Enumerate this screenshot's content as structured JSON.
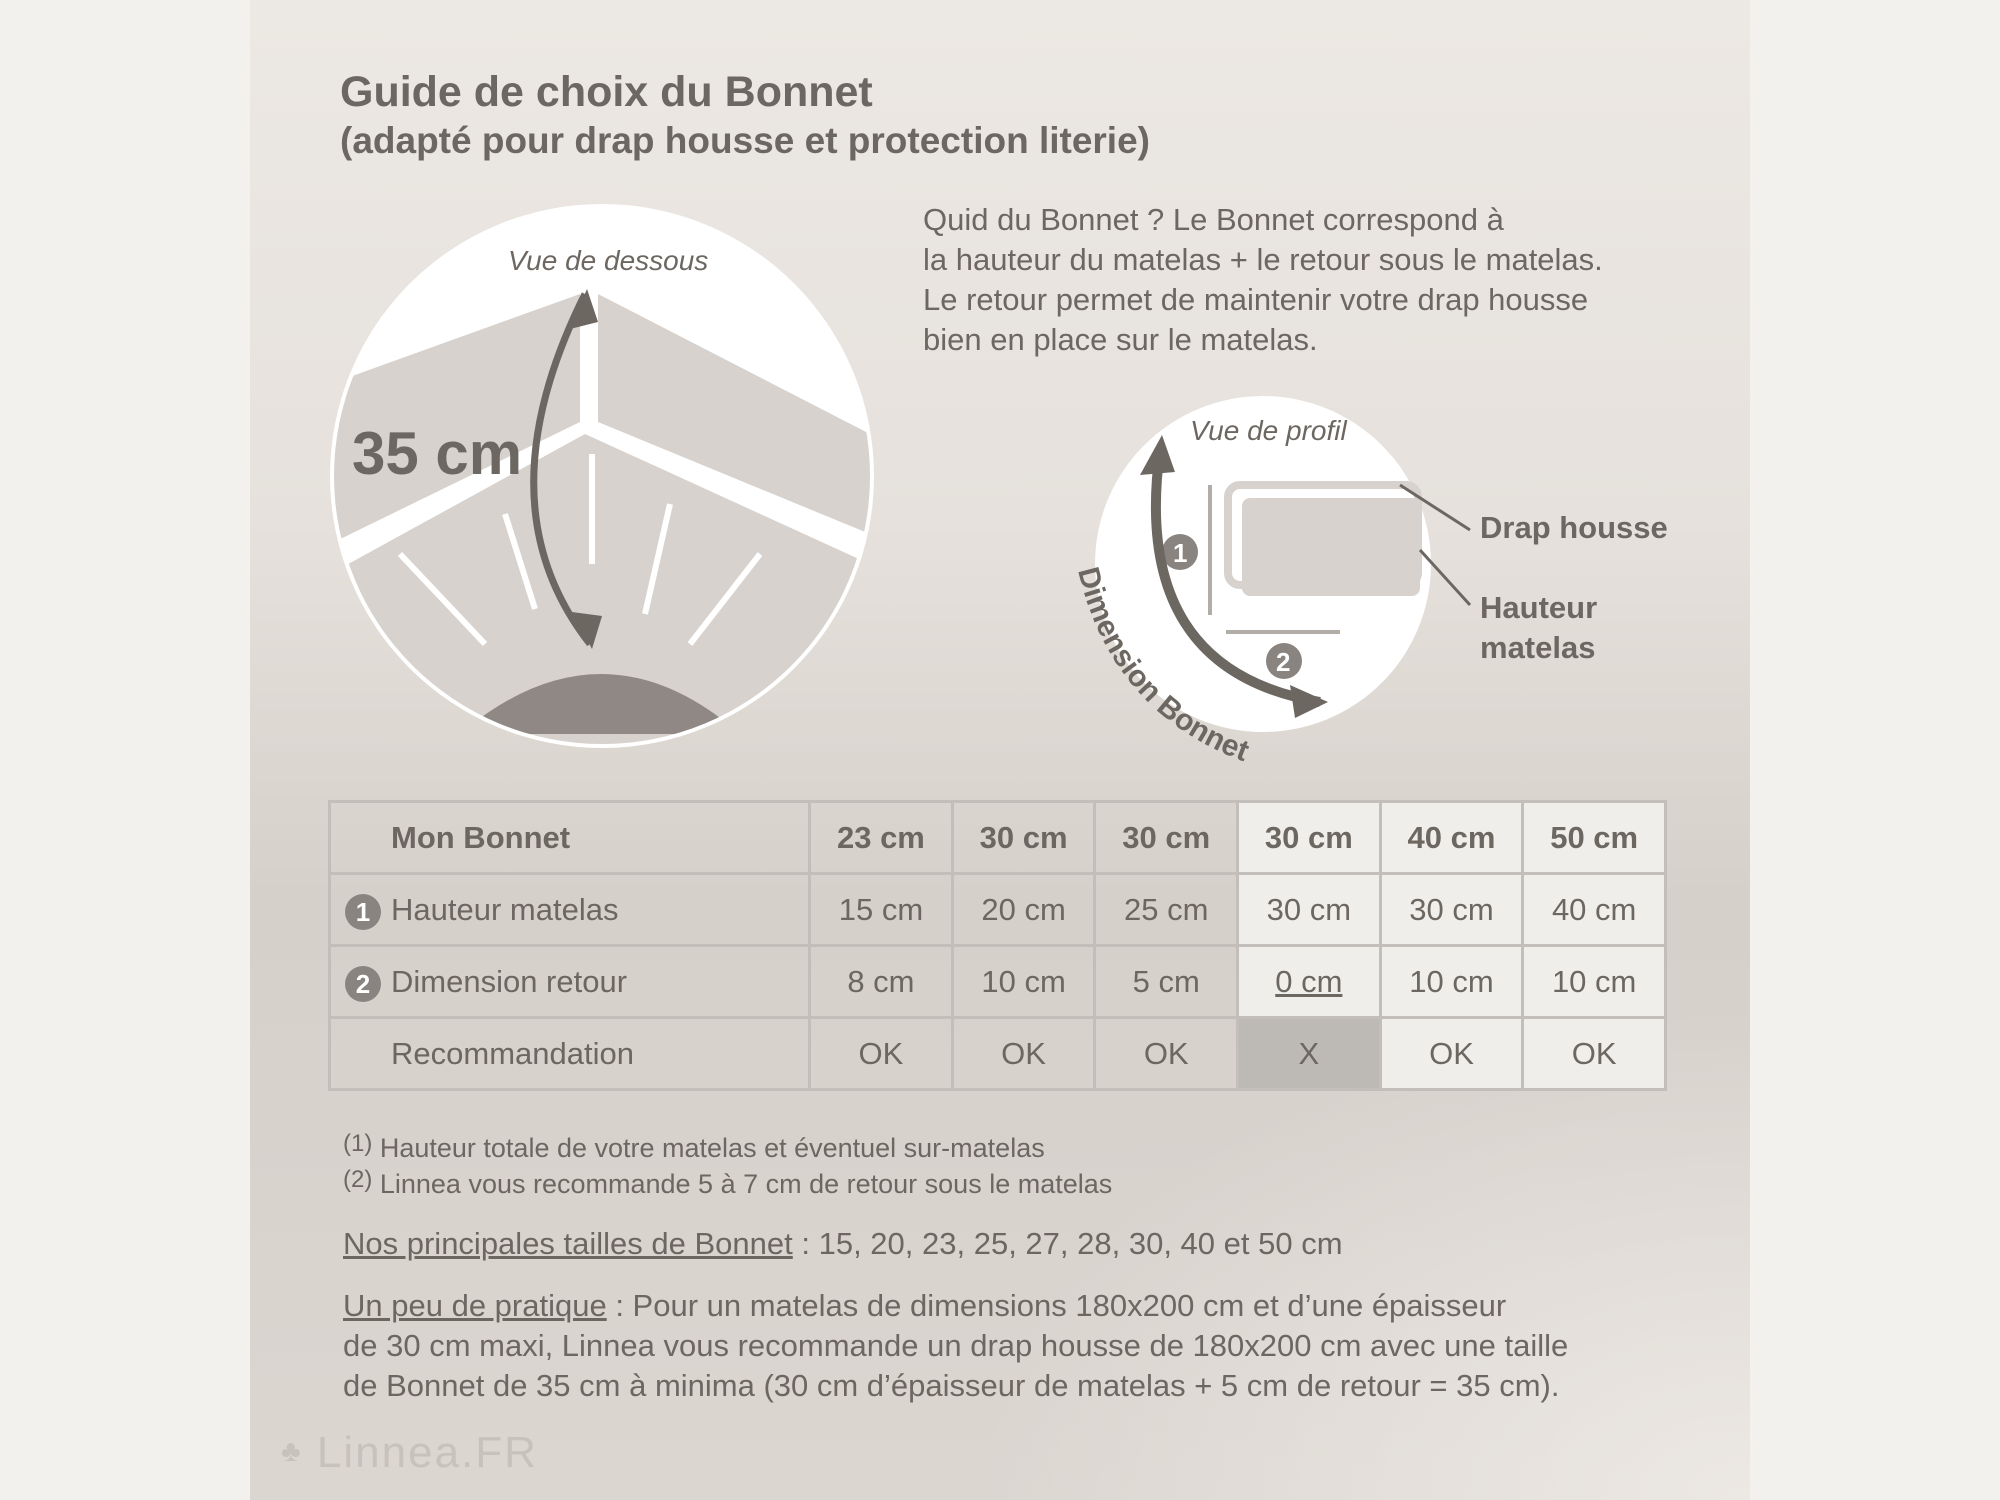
{
  "title": "Guide de choix du Bonnet",
  "subtitle": "(adapté pour drap housse et protection literie)",
  "intro": [
    "Quid du Bonnet ? Le Bonnet correspond à",
    "la hauteur du matelas + le retour sous le matelas.",
    "Le retour permet de maintenir votre drap housse",
    "bien en place sur le matelas."
  ],
  "diagram_bottom": {
    "caption": "Vue de dessous",
    "measure": "35 cm"
  },
  "diagram_profile": {
    "caption": "Vue de profil",
    "label1": "Drap housse",
    "label2a": "Hauteur",
    "label2b": "matelas",
    "arc_label": "Dimension Bonnet",
    "marker1": "1",
    "marker2": "2"
  },
  "table": {
    "header": [
      "Mon Bonnet",
      "23 cm",
      "30 cm",
      "30 cm",
      "30 cm",
      "40 cm",
      "50 cm"
    ],
    "rows": [
      {
        "num": "1",
        "label": "Hauteur matelas",
        "cells": [
          "15 cm",
          "20 cm",
          "25 cm",
          "30 cm",
          "30 cm",
          "40 cm"
        ]
      },
      {
        "num": "2",
        "label": "Dimension retour",
        "cells": [
          "8 cm",
          "10 cm",
          "5 cm",
          "0 cm",
          "10 cm",
          "10 cm"
        ]
      },
      {
        "num": "",
        "label": "Recommandation",
        "cells": [
          "OK",
          "OK",
          "OK",
          "X",
          "OK",
          "OK"
        ]
      }
    ]
  },
  "footnotes": [
    {
      "mark": "(1)",
      "text": "Hauteur totale de votre matelas et éventuel sur-matelas"
    },
    {
      "mark": "(2)",
      "text": "Linnea vous recommande 5 à 7 cm de retour sous le matelas"
    }
  ],
  "sizes": {
    "label": "Nos principales tailles de Bonnet",
    "text": " : 15, 20, 23, 25, 27, 28, 30, 40 et 50 cm"
  },
  "practice": {
    "label": "Un peu de pratique",
    "line1": " : Pour un matelas de dimensions 180x200 cm et d’une épaisseur",
    "line2": "de 30 cm maxi, Linnea vous recommande un drap housse de 180x200 cm avec une taille",
    "line3": "de Bonnet de 35 cm à minima (30 cm d’épaisseur de matelas + 5 cm de retour = 35 cm)."
  },
  "logo": "Linnea.FR"
}
